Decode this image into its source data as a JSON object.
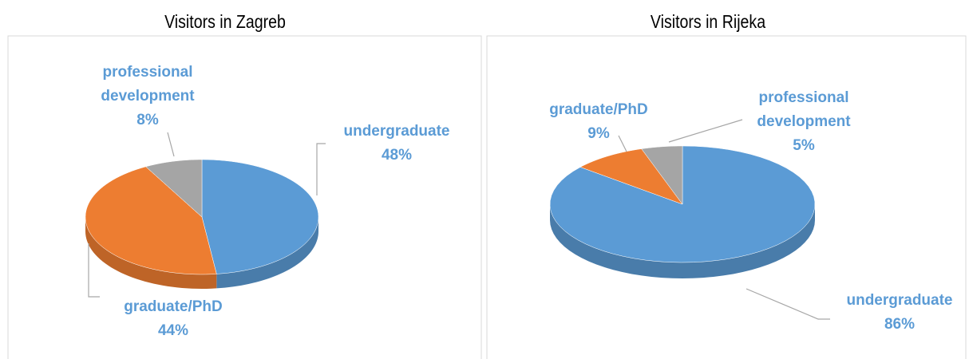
{
  "chart_data": [
    {
      "type": "pie",
      "title": "Visitors in Zagreb",
      "categories": [
        "undergraduate",
        "graduate/PhD",
        "professional development"
      ],
      "values": [
        48,
        44,
        8
      ],
      "value_labels": [
        "48%",
        "44%",
        "8%"
      ],
      "colors": [
        "#5b9bd5",
        "#ed7d31",
        "#a5a5a5"
      ]
    },
    {
      "type": "pie",
      "title": "Visitors in Rijeka",
      "categories": [
        "undergraduate",
        "graduate/PhD",
        "professional development"
      ],
      "values": [
        86,
        9,
        5
      ],
      "value_labels": [
        "86%",
        "9%",
        "5%"
      ],
      "colors": [
        "#5b9bd5",
        "#ed7d31",
        "#a5a5a5"
      ]
    }
  ]
}
